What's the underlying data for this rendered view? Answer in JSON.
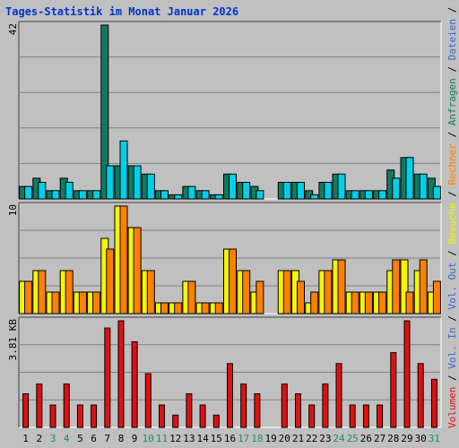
{
  "title": "Tages-Statistik im Monat Januar 2026",
  "colors": {
    "background": "#c0c0c0",
    "title": "#0033cc",
    "plot_bg": "#c0c0c0",
    "grid": "#808080",
    "anfragen": "#0f7a5f",
    "dateien": "#00cfe8",
    "seiten": "#00cfe8",
    "besuche": "#f5f500",
    "rechner": "#ff8000",
    "volumen": "#e01010",
    "weekend_label": "#1a8f5a",
    "weekday_label": "#000000",
    "legend_blue": "#3366cc",
    "legend_sep": "#000000"
  },
  "chart_data": [
    {
      "type": "bar",
      "panel": "top",
      "ymax_label": "42",
      "ylim": [
        0,
        42
      ],
      "grid": true,
      "legend": [
        {
          "name": "Anfragen",
          "color": "#0f7a5f"
        },
        {
          "name": "Dateien",
          "color": "#3366cc"
        },
        {
          "name": "Seiten",
          "color": "#00cfe8"
        }
      ],
      "series": [
        {
          "name": "Anfragen",
          "values": [
            3,
            5,
            2,
            5,
            2,
            2,
            42,
            8,
            8,
            6,
            2,
            1,
            3,
            2,
            1,
            6,
            4,
            3,
            0,
            4,
            4,
            2,
            4,
            6,
            2,
            2,
            2,
            7,
            10,
            6,
            5
          ]
        },
        {
          "name": "Dateien",
          "values": [
            3,
            4,
            2,
            4,
            2,
            2,
            8,
            14,
            8,
            6,
            2,
            1,
            3,
            2,
            1,
            6,
            4,
            2,
            0,
            4,
            4,
            1,
            4,
            6,
            2,
            2,
            2,
            5,
            10,
            6,
            3
          ]
        }
      ]
    },
    {
      "type": "bar",
      "panel": "middle",
      "ymax_label": "10",
      "ylim": [
        0,
        10
      ],
      "grid": true,
      "legend": [
        {
          "name": "Besuche",
          "color": "#f5f500"
        },
        {
          "name": "Rechner",
          "color": "#ff8000"
        }
      ],
      "series": [
        {
          "name": "Besuche",
          "values": [
            3,
            4,
            2,
            4,
            2,
            2,
            7,
            10,
            8,
            4,
            1,
            1,
            3,
            1,
            1,
            6,
            4,
            2,
            0,
            4,
            4,
            1,
            4,
            5,
            2,
            2,
            2,
            4,
            5,
            4,
            2
          ]
        },
        {
          "name": "Rechner",
          "values": [
            3,
            4,
            2,
            4,
            2,
            2,
            6,
            10,
            8,
            4,
            1,
            1,
            3,
            1,
            1,
            6,
            4,
            3,
            0,
            4,
            3,
            2,
            4,
            5,
            2,
            2,
            2,
            5,
            2,
            5,
            3
          ]
        }
      ]
    },
    {
      "type": "bar",
      "panel": "bottom",
      "ymax_label": "3.81 KB",
      "ylim": [
        0,
        3.81
      ],
      "grid": true,
      "legend": [
        {
          "name": "Volumen",
          "color": "#e01010"
        },
        {
          "name": "Vol. In",
          "color": "#3366cc"
        },
        {
          "name": "Vol. Out",
          "color": "#3366cc"
        }
      ],
      "series": [
        {
          "name": "Volumen",
          "values": [
            1.2,
            1.55,
            0.8,
            1.55,
            0.8,
            0.8,
            3.55,
            3.81,
            3.06,
            1.92,
            0.8,
            0.44,
            1.2,
            0.8,
            0.44,
            2.28,
            1.55,
            1.2,
            0,
            1.55,
            1.2,
            0.8,
            1.55,
            2.28,
            0.8,
            0.8,
            0.8,
            2.67,
            3.81,
            2.28,
            1.72
          ]
        }
      ]
    }
  ],
  "x_axis": {
    "days": [
      "1",
      "2",
      "3",
      "4",
      "5",
      "6",
      "7",
      "8",
      "9",
      "10",
      "11",
      "12",
      "13",
      "14",
      "15",
      "16",
      "17",
      "18",
      "19",
      "20",
      "21",
      "22",
      "23",
      "24",
      "25",
      "26",
      "27",
      "28",
      "29",
      "30",
      "31"
    ],
    "weekend": [
      3,
      4,
      10,
      11,
      17,
      18,
      24,
      25,
      31
    ]
  }
}
